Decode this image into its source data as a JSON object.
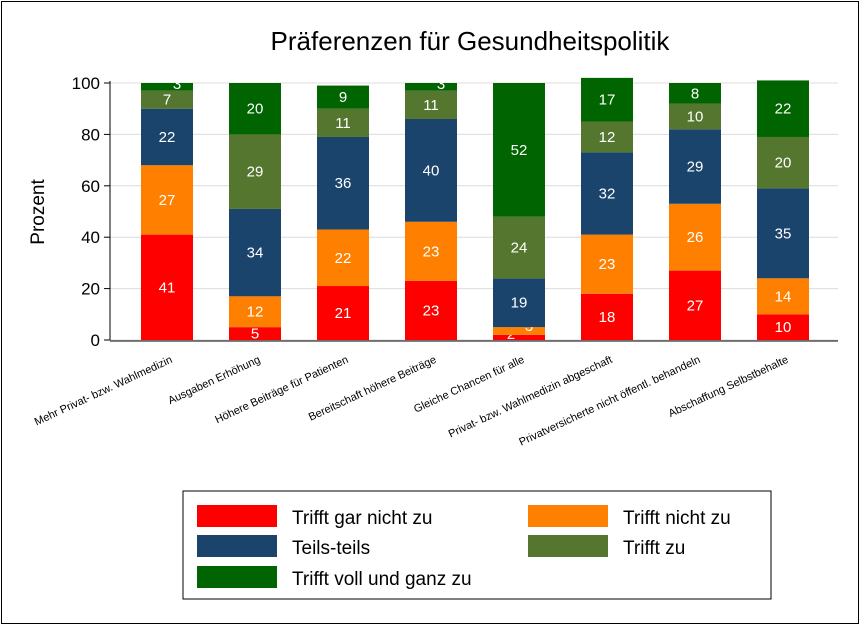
{
  "chart_data": {
    "type": "bar",
    "stacked": true,
    "title": "Präferenzen für Gesundheitspolitik",
    "ylabel": "Prozent",
    "xlabel": "",
    "ylim": [
      0,
      100
    ],
    "yticks": [
      0,
      20,
      40,
      60,
      80,
      100
    ],
    "grid": true,
    "legend_position": "bottom",
    "categories": [
      "Mehr Privat- bzw. Wahlmedizin",
      "Ausgaben Erhöhung",
      "Höhere Beiträge für Patienten",
      "Bereitschaft höhere Beiträge",
      "Gleiche Chancen für alle",
      "Privat- bzw. Wahlmedizin abgeschaft",
      "Privatversicherte nicht öffentl. behandeln",
      "Abschaffung Selbstbehalte"
    ],
    "series": [
      {
        "name": "Trifft gar nicht zu",
        "color": "#ff0000",
        "values": [
          41,
          5,
          21,
          23,
          2,
          18,
          27,
          10
        ]
      },
      {
        "name": "Trifft nicht zu",
        "color": "#ff8000",
        "values": [
          27,
          12,
          22,
          23,
          3,
          23,
          26,
          14
        ]
      },
      {
        "name": "Teils-teils",
        "color": "#1a446c",
        "values": [
          22,
          34,
          36,
          40,
          19,
          32,
          29,
          35
        ]
      },
      {
        "name": "Trifft zu",
        "color": "#55762f",
        "values": [
          7,
          29,
          11,
          11,
          24,
          12,
          10,
          20
        ]
      },
      {
        "name": "Trifft voll und ganz zu",
        "color": "#006400",
        "values": [
          3,
          20,
          9,
          3,
          52,
          17,
          8,
          22
        ]
      }
    ]
  }
}
